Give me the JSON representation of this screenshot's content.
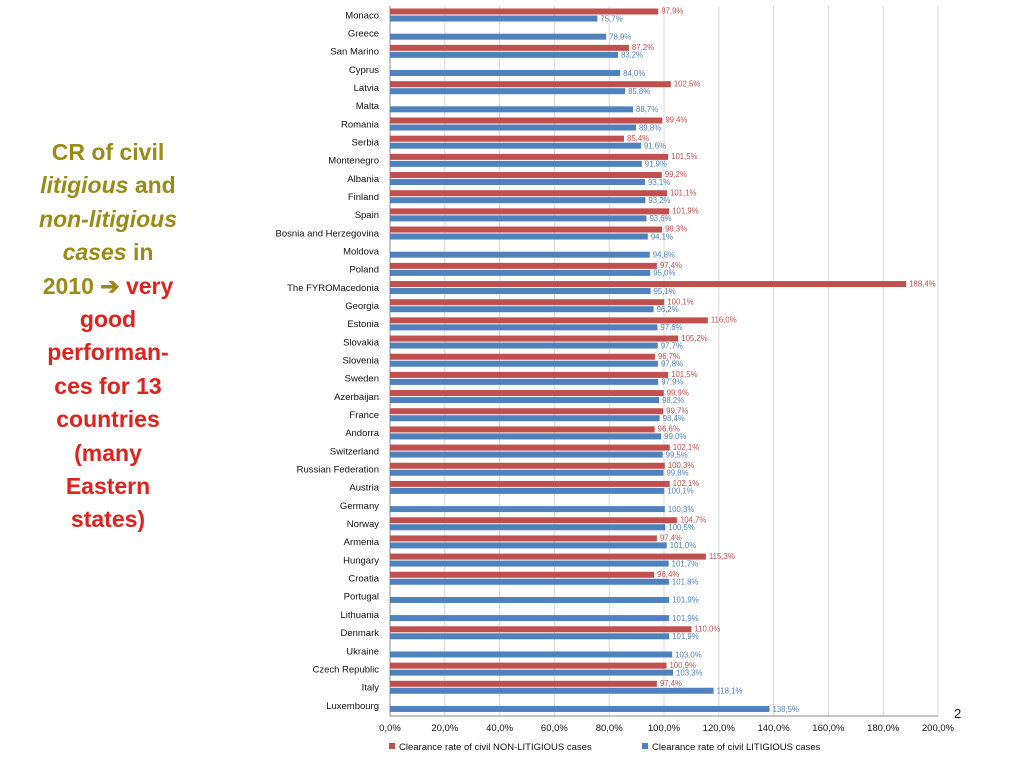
{
  "side_text": {
    "cr_of_civil": "CR of civil",
    "litigious": "litigious",
    "and": " and",
    "non_litigious": "non-litigious",
    "cases": "cases",
    "in": " in",
    "year": "2010",
    "arrow": "➔",
    "very": " very",
    "good": "good",
    "performan": "performan-",
    "ces_for_13": "ces for 13",
    "countries": "countries",
    "many": "(many",
    "eastern": "Eastern",
    "states": "states)"
  },
  "page_number": "2",
  "colors": {
    "non_litigious": "#C0504D",
    "litigious": "#4F81BD",
    "grid": "#D9D9D9",
    "olive_text": "#9A8B16",
    "red_text": "#E0211C"
  },
  "chart_data": {
    "type": "bar",
    "orientation": "horizontal",
    "categories": [
      "Monaco",
      "Greece",
      "San Marino",
      "Cyprus",
      "Latvia",
      "Malta",
      "Romania",
      "Serbia",
      "Montenegro",
      "Albania",
      "Finland",
      "Spain",
      "Bosnia and Herzegovina",
      "Moldova",
      "Poland",
      "The FYROMacedonia",
      "Georgia",
      "Estonia",
      "Slovakia",
      "Slovenia",
      "Sweden",
      "Azerbaijan",
      "France",
      "Andorra",
      "Switzerland",
      "Russian Federation",
      "Austria",
      "Germany",
      "Norway",
      "Armenia",
      "Hungary",
      "Croatia",
      "Portugal",
      "Lithuania",
      "Denmark",
      "Ukraine",
      "Czech Republic",
      "Italy",
      "Luxembourg"
    ],
    "series": [
      {
        "name": "Clearance rate of civil NON-LITIGIOUS cases",
        "values": [
          97.9,
          null,
          87.2,
          null,
          102.5,
          null,
          99.4,
          85.4,
          101.5,
          99.2,
          101.1,
          101.9,
          99.3,
          null,
          97.4,
          188.4,
          100.1,
          116.0,
          105.2,
          96.7,
          101.5,
          99.9,
          99.7,
          96.6,
          102.1,
          100.3,
          102.1,
          null,
          104.7,
          97.4,
          115.3,
          96.4,
          null,
          null,
          110.0,
          null,
          100.9,
          97.4,
          null
        ],
        "labels": [
          "97,9%",
          "",
          "87,2%",
          "",
          "102,5%",
          "",
          "99,4%",
          "85,4%",
          "101,5%",
          "99,2%",
          "101,1%",
          "101,9%",
          "99,3%",
          "",
          "97,4%",
          "188,4%",
          "100,1%",
          "116,0%",
          "105,2%",
          "96,7%",
          "101,5%",
          "99,9%",
          "99,7%",
          "96,6%",
          "102,1%",
          "100,3%",
          "102,1%",
          "",
          "104,7%",
          "97,4%",
          "115,3%",
          "96,4%",
          "",
          "",
          "110,0%",
          "",
          "100,9%",
          "97,4%",
          ""
        ]
      },
      {
        "name": "Clearance rate of civil LITIGIOUS cases",
        "values": [
          75.7,
          78.9,
          83.2,
          84.0,
          85.8,
          88.7,
          89.8,
          91.6,
          91.9,
          93.1,
          93.2,
          93.6,
          94.1,
          94.8,
          95.0,
          95.1,
          96.2,
          97.6,
          97.7,
          97.8,
          97.9,
          98.2,
          98.4,
          99.0,
          99.5,
          99.8,
          100.1,
          100.3,
          100.5,
          101.0,
          101.7,
          101.8,
          101.9,
          101.9,
          101.9,
          103.0,
          103.3,
          118.1,
          138.5
        ],
        "labels": [
          "75,7%",
          "78,9%",
          "83,2%",
          "84,0%",
          "85,8%",
          "88,7%",
          "89,8%",
          "91,6%",
          "91,9%",
          "93,1%",
          "93,2%",
          "93,6%",
          "94,1%",
          "94,8%",
          "95,0%",
          "95,1%",
          "96,2%",
          "97,6%",
          "97,7%",
          "97,8%",
          "97,9%",
          "98,2%",
          "98,4%",
          "99,0%",
          "99,5%",
          "99,8%",
          "100,1%",
          "100,3%",
          "100,5%",
          "101,0%",
          "101,7%",
          "101,8%",
          "101,9%",
          "101,9%",
          "101,9%",
          "103,0%",
          "103,3%",
          "118,1%",
          "138,5%"
        ]
      }
    ],
    "xlim": [
      0,
      200
    ],
    "xticks": [
      "0,0%",
      "20,0%",
      "40,0%",
      "60,0%",
      "80,0%",
      "100,0%",
      "120,0%",
      "140,0%",
      "160,0%",
      "180,0%",
      "200,0%"
    ],
    "grid": true,
    "legend": "bottom"
  }
}
